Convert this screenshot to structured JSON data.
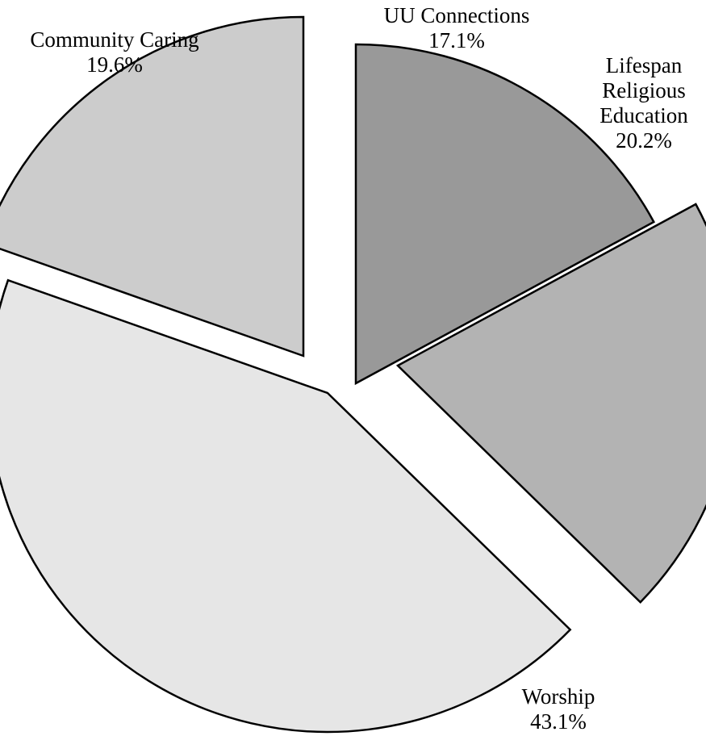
{
  "chart_data": {
    "type": "pie",
    "title": "",
    "slices": [
      {
        "label": [
          "UU Connections"
        ],
        "value": 17.1,
        "value_label": "17.1%",
        "color": "#999999"
      },
      {
        "label": [
          "Lifespan",
          "Religious",
          "Education"
        ],
        "value": 20.2,
        "value_label": "20.2%",
        "color": "#b3b3b3"
      },
      {
        "label": [
          "Worship"
        ],
        "value": 43.1,
        "value_label": "43.1%",
        "color": "#e6e6e6"
      },
      {
        "label": [
          "Community Caring"
        ],
        "value": 19.6,
        "value_label": "19.6%",
        "color": "#cccccc"
      }
    ],
    "exploded": true,
    "start": "top, clockwise",
    "legend": "none",
    "border_color": "#000000"
  }
}
